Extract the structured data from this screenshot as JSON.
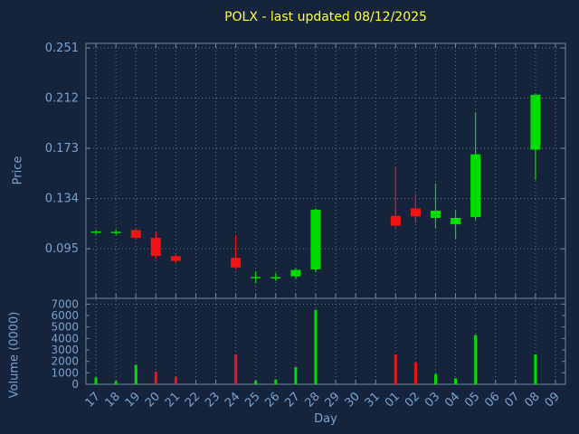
{
  "title": "POLX - last updated 08/12/2025",
  "axis_labels": {
    "x": "Day",
    "price": "Price",
    "volume": "Volume (0000)"
  },
  "colors": {
    "background": "#15243a",
    "title": "#ffff33",
    "axis_text": "#79a1cc",
    "grid": "#c7d3df",
    "border": "#72879e",
    "up": "#00dc00",
    "down": "#f01414"
  },
  "chart_data": {
    "type": "candlestick",
    "title": "POLX - last updated 08/12/2025",
    "xlabel": "Day",
    "x_categories": [
      "17",
      "18",
      "19",
      "20",
      "21",
      "22",
      "23",
      "24",
      "25",
      "26",
      "27",
      "28",
      "29",
      "30",
      "31",
      "01",
      "02",
      "03",
      "04",
      "05",
      "06",
      "07",
      "08",
      "09"
    ],
    "price": {
      "ylabel": "Price",
      "ytick_labels": [
        "0.095",
        "0.134",
        "0.173",
        "0.212",
        "0.251"
      ],
      "ylim": [
        0.0565,
        0.2545
      ],
      "candles": [
        {
          "day": "17",
          "open": 0.1075,
          "high": 0.1095,
          "low": 0.106,
          "close": 0.1085
        },
        {
          "day": "18",
          "open": 0.1075,
          "high": 0.11,
          "low": 0.1058,
          "close": 0.1082
        },
        {
          "day": "19",
          "open": 0.1095,
          "high": 0.1105,
          "low": 0.1025,
          "close": 0.1035
        },
        {
          "day": "20",
          "open": 0.1035,
          "high": 0.108,
          "low": 0.087,
          "close": 0.0895
        },
        {
          "day": "21",
          "open": 0.0893,
          "high": 0.0905,
          "low": 0.084,
          "close": 0.0856
        },
        {
          "day": "24",
          "open": 0.088,
          "high": 0.1055,
          "low": 0.079,
          "close": 0.0805
        },
        {
          "day": "25",
          "open": 0.0726,
          "high": 0.0775,
          "low": 0.0682,
          "close": 0.0731
        },
        {
          "day": "26",
          "open": 0.0727,
          "high": 0.0762,
          "low": 0.07,
          "close": 0.073
        },
        {
          "day": "27",
          "open": 0.0736,
          "high": 0.08,
          "low": 0.072,
          "close": 0.0786
        },
        {
          "day": "28",
          "open": 0.079,
          "high": 0.1262,
          "low": 0.0768,
          "close": 0.1254
        },
        {
          "day": "01",
          "open": 0.1206,
          "high": 0.159,
          "low": 0.1118,
          "close": 0.113
        },
        {
          "day": "02",
          "open": 0.1264,
          "high": 0.1376,
          "low": 0.115,
          "close": 0.1202
        },
        {
          "day": "03",
          "open": 0.119,
          "high": 0.1458,
          "low": 0.1112,
          "close": 0.1246
        },
        {
          "day": "04",
          "open": 0.114,
          "high": 0.1246,
          "low": 0.1026,
          "close": 0.119
        },
        {
          "day": "05",
          "open": 0.1196,
          "high": 0.2008,
          "low": 0.1172,
          "close": 0.1684
        },
        {
          "day": "08",
          "open": 0.172,
          "high": 0.2158,
          "low": 0.1484,
          "close": 0.2146
        }
      ]
    },
    "volume": {
      "ylabel": "Volume (0000)",
      "yticks": [
        0,
        1000,
        2000,
        3000,
        4000,
        5000,
        6000,
        7000
      ],
      "ylim": [
        0,
        7500
      ],
      "bars": [
        {
          "day": "17",
          "value": 600,
          "dir": "up"
        },
        {
          "day": "18",
          "value": 250,
          "dir": "up"
        },
        {
          "day": "19",
          "value": 1700,
          "dir": "up"
        },
        {
          "day": "20",
          "value": 1100,
          "dir": "down"
        },
        {
          "day": "21",
          "value": 650,
          "dir": "down"
        },
        {
          "day": "24",
          "value": 2600,
          "dir": "down"
        },
        {
          "day": "25",
          "value": 300,
          "dir": "up"
        },
        {
          "day": "26",
          "value": 420,
          "dir": "up"
        },
        {
          "day": "27",
          "value": 1500,
          "dir": "up"
        },
        {
          "day": "28",
          "value": 6500,
          "dir": "up"
        },
        {
          "day": "01",
          "value": 2600,
          "dir": "down"
        },
        {
          "day": "02",
          "value": 1900,
          "dir": "down"
        },
        {
          "day": "03",
          "value": 900,
          "dir": "up"
        },
        {
          "day": "04",
          "value": 520,
          "dir": "up"
        },
        {
          "day": "05",
          "value": 4300,
          "dir": "up"
        },
        {
          "day": "08",
          "value": 2600,
          "dir": "up"
        }
      ]
    }
  }
}
